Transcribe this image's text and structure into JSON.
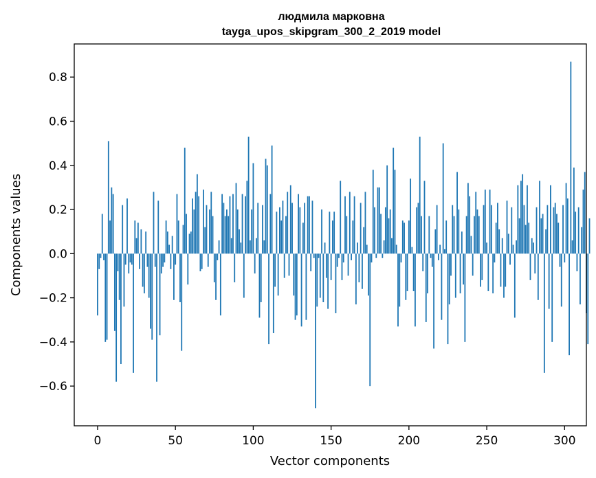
{
  "chart_data": {
    "type": "bar",
    "title": "людмила марковна",
    "subtitle": "tayga_upos_skipgram_300_2_2019 model",
    "xlabel": "Vector components",
    "ylabel": "Components values",
    "xlim": [
      -15,
      314
    ],
    "ylim": [
      -0.78,
      0.95
    ],
    "xticks": [
      0,
      50,
      100,
      150,
      200,
      250,
      300
    ],
    "xtick_labels": [
      "0",
      "50",
      "100",
      "150",
      "200",
      "250",
      "300"
    ],
    "yticks": [
      -0.6,
      -0.4,
      -0.2,
      0.0,
      0.2,
      0.4,
      0.6,
      0.8
    ],
    "ytick_labels": [
      "−0.6",
      "−0.4",
      "−0.2",
      "0.0",
      "0.2",
      "0.4",
      "0.6",
      "0.8"
    ],
    "grid": false,
    "bar_color": "#1f77b4",
    "values": [
      -0.28,
      -0.07,
      -0.02,
      0.18,
      -0.03,
      -0.4,
      -0.39,
      0.51,
      0.15,
      0.3,
      0.27,
      -0.35,
      -0.58,
      -0.08,
      -0.21,
      -0.5,
      0.22,
      -0.24,
      -0.05,
      0.25,
      -0.09,
      -0.04,
      -0.05,
      -0.54,
      0.15,
      0.07,
      0.14,
      -0.07,
      0.11,
      -0.15,
      -0.18,
      0.1,
      -0.06,
      -0.2,
      -0.34,
      -0.39,
      0.28,
      -0.06,
      -0.58,
      0.24,
      -0.37,
      -0.09,
      -0.06,
      -0.04,
      0.15,
      0.1,
      0.04,
      -0.07,
      0.08,
      -0.21,
      -0.05,
      0.27,
      0.15,
      -0.22,
      -0.44,
      0.13,
      0.48,
      0.18,
      -0.14,
      0.09,
      0.1,
      0.25,
      0.2,
      0.28,
      0.36,
      0.26,
      -0.08,
      -0.07,
      0.29,
      0.12,
      0.22,
      -0.06,
      0.2,
      0.28,
      0.17,
      -0.13,
      -0.21,
      -0.03,
      0.06,
      -0.28,
      0.27,
      0.23,
      0.17,
      0.2,
      0.17,
      0.26,
      0.07,
      0.27,
      -0.13,
      0.32,
      0.2,
      0.11,
      0.05,
      0.27,
      -0.2,
      0.26,
      0.33,
      0.53,
      0.06,
      0.2,
      0.41,
      -0.09,
      0.07,
      0.23,
      -0.29,
      -0.22,
      0.22,
      0.06,
      0.43,
      0.4,
      -0.41,
      0.27,
      0.49,
      -0.36,
      -0.15,
      0.19,
      -0.19,
      0.21,
      0.15,
      0.24,
      -0.11,
      0.17,
      0.28,
      -0.1,
      0.31,
      0.23,
      -0.19,
      -0.3,
      -0.28,
      0.27,
      0.21,
      -0.33,
      0.14,
      0.23,
      -0.3,
      0.26,
      0.26,
      -0.08,
      0.24,
      -0.02,
      -0.7,
      -0.24,
      -0.02,
      -0.2,
      0.2,
      -0.22,
      0.05,
      -0.11,
      -0.25,
      0.19,
      -0.12,
      0.15,
      0.19,
      -0.27,
      -0.06,
      -0.02,
      0.33,
      -0.12,
      -0.04,
      0.26,
      0.17,
      -0.1,
      0.28,
      -0.03,
      0.15,
      0.26,
      -0.23,
      0.05,
      -0.13,
      0.23,
      -0.16,
      0.12,
      0.28,
      0.04,
      -0.19,
      -0.6,
      -0.04,
      0.38,
      0.21,
      -0.02,
      0.3,
      0.3,
      0.18,
      -0.02,
      0.06,
      0.21,
      0.4,
      0.16,
      0.2,
      0.07,
      0.48,
      0.38,
      0.04,
      -0.33,
      -0.24,
      -0.04,
      0.15,
      0.14,
      -0.21,
      -0.17,
      0.15,
      0.34,
      0.03,
      -0.17,
      -0.33,
      0.21,
      0.23,
      0.53,
      0.17,
      -0.08,
      0.33,
      -0.31,
      -0.18,
      0.17,
      -0.02,
      -0.06,
      -0.43,
      0.11,
      0.22,
      -0.03,
      0.04,
      -0.3,
      0.5,
      0.02,
      0.15,
      -0.41,
      -0.23,
      -0.1,
      0.22,
      0.17,
      -0.2,
      0.37,
      0.2,
      -0.18,
      0.1,
      -0.14,
      -0.4,
      0.17,
      0.32,
      0.26,
      0.08,
      -0.1,
      0.17,
      0.28,
      0.2,
      0.17,
      -0.15,
      -0.12,
      0.22,
      0.29,
      0.05,
      -0.17,
      0.29,
      0.22,
      -0.18,
      -0.04,
      0.14,
      0.23,
      0.11,
      -0.15,
      0.07,
      -0.2,
      -0.15,
      0.24,
      0.09,
      -0.05,
      0.21,
      0.04,
      -0.29,
      0.06,
      0.31,
      0.16,
      0.33,
      0.36,
      0.22,
      0.13,
      0.31,
      0.14,
      -0.12,
      0.07,
      0.05,
      -0.09,
      0.21,
      -0.21,
      0.33,
      0.16,
      0.18,
      -0.54,
      0.11,
      0.22,
      -0.25,
      0.31,
      -0.4,
      0.21,
      0.23,
      0.18,
      0.14,
      -0.06,
      -0.24,
      0.22,
      -0.04,
      0.32,
      0.25,
      -0.46,
      0.87,
      0.06,
      0.39,
      0.19,
      -0.08,
      0.21,
      -0.23,
      0.12,
      0.29,
      0.37,
      -0.27,
      -0.41,
      0.16
    ]
  }
}
